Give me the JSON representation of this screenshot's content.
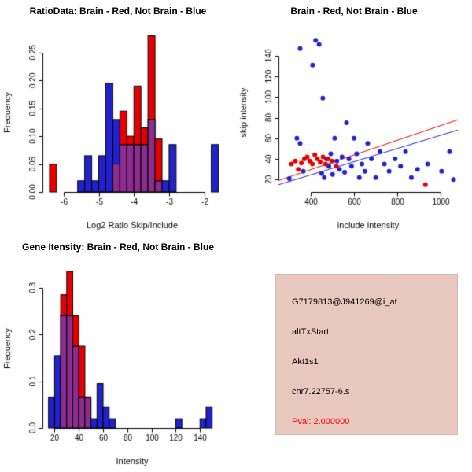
{
  "page": {
    "background": "#ffffff"
  },
  "colors": {
    "red": "#e60000",
    "blue": "#2222cc",
    "purple": "#8d2d8f",
    "axis": "#000000"
  },
  "chart_data": [
    {
      "type": "histogram",
      "title": "RatioData: Brain - Red, Not Brain - Blue",
      "xlabel": "Log2 Ratio Skip/Include",
      "ylabel": "Frequency",
      "xlim": [
        -6.6,
        -1.5
      ],
      "ylim": [
        0,
        0.285
      ],
      "xticks": [
        -6,
        -5,
        -4,
        -3,
        -2
      ],
      "xtick_labels": [
        "-6",
        "-5",
        "-4",
        "-3",
        "-2"
      ],
      "yticks": [
        0,
        0.05,
        0.1,
        0.15,
        0.2,
        0.25
      ],
      "ytick_labels": [
        "0.00",
        "0.05",
        "0.10",
        "0.15",
        "0.20",
        "0.25"
      ],
      "margins": {
        "l": 54,
        "r": 18,
        "t": 42,
        "b": 56
      },
      "bins": {
        "start": -6.4,
        "width": 0.2
      },
      "blue": [
        0,
        0,
        0,
        0,
        0.02,
        0.065,
        0.02,
        0.065,
        0.195,
        0.13,
        0.085,
        0.085,
        0.085,
        0.085,
        0.13,
        0.02,
        0.02,
        0.085,
        0,
        0,
        0,
        0,
        0,
        0.085
      ],
      "red": [
        0.05,
        0,
        0,
        0,
        0,
        0,
        0,
        0,
        0,
        0.05,
        0.145,
        0.1,
        0.19,
        0.115,
        0.28,
        0.095,
        0,
        0,
        0,
        0,
        0,
        0,
        0,
        0
      ]
    },
    {
      "type": "scatter",
      "title": "Brain - Red, Not Brain - Blue",
      "xlabel": "include intensity",
      "ylabel": "skip intensity",
      "xlim": [
        250,
        1080
      ],
      "ylim": [
        8,
        162
      ],
      "xticks": [
        400,
        600,
        800,
        1000
      ],
      "xtick_labels": [
        "400",
        "600",
        "800",
        "1000"
      ],
      "yticks": [
        20,
        40,
        60,
        80,
        100,
        120,
        140
      ],
      "ytick_labels": [
        "20",
        "40",
        "60",
        "80",
        "100",
        "120",
        "140"
      ],
      "margins": {
        "l": 54,
        "r": 18,
        "t": 42,
        "b": 56
      },
      "series": [
        {
          "name": "not-brain",
          "color": "blue",
          "points": [
            [
              350,
              147
            ],
            [
              408,
              131
            ],
            [
              422,
              155
            ],
            [
              438,
              151
            ],
            [
              455,
              99
            ],
            [
              300,
              21
            ],
            [
              335,
              60
            ],
            [
              350,
              55
            ],
            [
              365,
              28
            ],
            [
              450,
              26
            ],
            [
              462,
              22
            ],
            [
              472,
              40
            ],
            [
              483,
              33
            ],
            [
              492,
              45
            ],
            [
              500,
              25
            ],
            [
              510,
              60
            ],
            [
              520,
              38
            ],
            [
              532,
              30
            ],
            [
              544,
              42
            ],
            [
              556,
              27
            ],
            [
              565,
              75
            ],
            [
              576,
              40
            ],
            [
              588,
              33
            ],
            [
              600,
              60
            ],
            [
              612,
              45
            ],
            [
              624,
              22
            ],
            [
              636,
              35
            ],
            [
              650,
              28
            ],
            [
              663,
              55
            ],
            [
              680,
              40
            ],
            [
              700,
              22
            ],
            [
              720,
              47
            ],
            [
              740,
              35
            ],
            [
              762,
              28
            ],
            [
              790,
              40
            ],
            [
              815,
              33
            ],
            [
              838,
              47
            ],
            [
              865,
              22
            ],
            [
              893,
              30
            ],
            [
              940,
              35
            ],
            [
              1005,
              28
            ],
            [
              1042,
              47
            ],
            [
              1060,
              20
            ]
          ]
        },
        {
          "name": "brain",
          "color": "red",
          "points": [
            [
              310,
              35
            ],
            [
              328,
              38
            ],
            [
              342,
              30
            ],
            [
              356,
              36
            ],
            [
              370,
              40
            ],
            [
              383,
              42
            ],
            [
              395,
              38
            ],
            [
              407,
              35
            ],
            [
              418,
              44
            ],
            [
              430,
              40
            ],
            [
              443,
              37
            ],
            [
              456,
              42
            ],
            [
              468,
              35
            ],
            [
              480,
              40
            ],
            [
              498,
              38
            ],
            [
              518,
              33
            ],
            [
              930,
              15
            ]
          ]
        }
      ],
      "lines": [
        {
          "color": "blue",
          "x1": 250,
          "y1": 15,
          "x2": 1080,
          "y2": 68
        },
        {
          "color": "red",
          "x1": 250,
          "y1": 19,
          "x2": 1080,
          "y2": 78
        }
      ]
    },
    {
      "type": "histogram",
      "title": "Gene Itensity: Brain - Red, Not Brain - Blue",
      "xlabel": "Intensity",
      "ylabel": "Frequency",
      "xlim": [
        10,
        158
      ],
      "ylim": [
        0,
        0.34
      ],
      "xticks": [
        20,
        40,
        60,
        80,
        100,
        120,
        140
      ],
      "xtick_labels": [
        "20",
        "40",
        "60",
        "80",
        "100",
        "120",
        "140"
      ],
      "yticks": [
        0,
        0.1,
        0.2,
        0.3
      ],
      "ytick_labels": [
        "0.0",
        "0.1",
        "0.2",
        "0.3"
      ],
      "margins": {
        "l": 54,
        "r": 18,
        "t": 42,
        "b": 56
      },
      "bins": {
        "start": 15,
        "width": 5
      },
      "blue": [
        0.065,
        0.155,
        0.24,
        0.24,
        0.175,
        0.065,
        0.065,
        0.02,
        0.095,
        0.045,
        0.02,
        0,
        0,
        0,
        0,
        0,
        0,
        0,
        0,
        0,
        0,
        0.02,
        0,
        0,
        0,
        0.02,
        0.045,
        0
      ],
      "red": [
        0,
        0,
        0.285,
        0.335,
        0.24,
        0.175,
        0.065,
        0,
        0,
        0,
        0,
        0,
        0,
        0,
        0,
        0,
        0,
        0,
        0,
        0,
        0,
        0,
        0,
        0,
        0,
        0,
        0,
        0
      ]
    }
  ],
  "info_panel": {
    "background": "#e8c8bf",
    "lines": [
      {
        "text": "G7179813@J941269@i_at",
        "color": "#000000"
      },
      {
        "text": "altTxStart",
        "color": "#000000"
      },
      {
        "text": "Akt1s1",
        "color": "#000000"
      },
      {
        "text": "chr7.22757-6.s",
        "color": "#000000"
      },
      {
        "text": "Pval: 2.000000",
        "color": "#ff0000"
      }
    ]
  }
}
